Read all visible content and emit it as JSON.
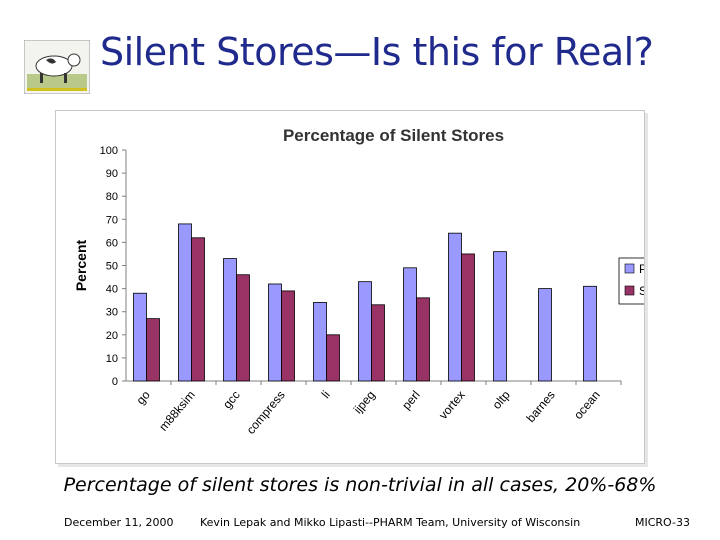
{
  "slide": {
    "title": "Silent Stores—Is this for Real?",
    "caption": "Percentage of silent stores is non-trivial in all cases, 20%-68%",
    "footer_date": "December 11, 2000",
    "footer_authors": "Kevin Lepak and Mikko Lipasti--PHARM Team, University of Wisconsin",
    "footer_venue": "MICRO-33"
  },
  "colors": {
    "title": "#1f2a8c",
    "ppc": "#9999ff",
    "ss": "#993366",
    "grid": "#b0b0b0"
  },
  "chart_data": {
    "type": "bar",
    "title": "Percentage of Silent Stores",
    "xlabel": "",
    "ylabel": "Percent",
    "ylim": [
      0,
      100
    ],
    "yticks": [
      0,
      10,
      20,
      30,
      40,
      50,
      60,
      70,
      80,
      90,
      100
    ],
    "grid": false,
    "legend_position": "right",
    "categories": [
      "go",
      "m88ksim",
      "gcc",
      "compress",
      "li",
      "ijpeg",
      "perl",
      "vortex",
      "oltp",
      "barnes",
      "ocean"
    ],
    "series": [
      {
        "name": "PPC",
        "color": "#9999ff",
        "values": [
          38,
          68,
          53,
          42,
          34,
          43,
          49,
          64,
          56,
          40,
          41
        ]
      },
      {
        "name": "SS",
        "color": "#993366",
        "values": [
          27,
          62,
          46,
          39,
          20,
          33,
          36,
          55,
          null,
          null,
          null
        ]
      }
    ]
  }
}
